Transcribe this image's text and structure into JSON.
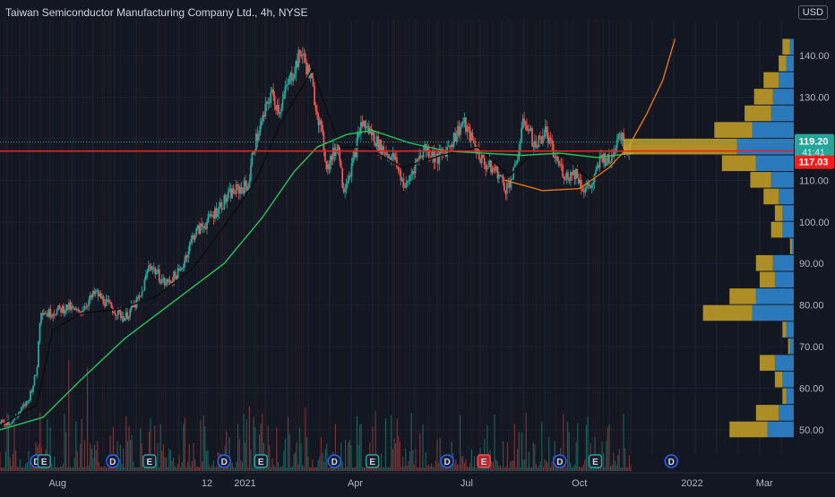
{
  "header": {
    "title": "Taiwan Semiconductor Manufacturing Company Ltd., 4h, NYSE",
    "currency": "USD"
  },
  "colors": {
    "background": "#131722",
    "up": "#26a69a",
    "down": "#ef5350",
    "ema_long": "#22c55e",
    "sma_short": "#0b0b0b",
    "cup_curve": "#f57c00",
    "price_line": "#ff1a1a",
    "volume_profile_buy": "#2e8bd6",
    "volume_profile_sell": "#c9a227"
  },
  "chart_data": {
    "type": "candlestick",
    "title": "Taiwan Semiconductor Manufacturing Company Ltd., 4h, NYSE",
    "ylim": [
      42,
      147
    ],
    "y_ticks": [
      50,
      60,
      70,
      80,
      90,
      100,
      110,
      120,
      130,
      140
    ],
    "y_tick_labels": [
      "50.00",
      "60.00",
      "70.00",
      "80.00",
      "90.00",
      "100.00",
      "110.00",
      "120.00",
      "130.00",
      "140.00"
    ],
    "x_range": [
      "2020-06-15",
      "2022-03-25"
    ],
    "x_ticks": [
      {
        "date": "2020-08-01",
        "label": "Aug"
      },
      {
        "date": "2020-12-01",
        "label": "12"
      },
      {
        "date": "2021-01-01",
        "label": "2021"
      },
      {
        "date": "2021-04-01",
        "label": "Apr"
      },
      {
        "date": "2021-07-01",
        "label": "Jul"
      },
      {
        "date": "2021-10-01",
        "label": "Oct"
      },
      {
        "date": "2022-01-01",
        "label": "2022"
      },
      {
        "date": "2022-03-01",
        "label": "Mar"
      }
    ],
    "price_path": [
      [
        "2020-06-15",
        51.5
      ],
      [
        "2020-06-25",
        52
      ],
      [
        "2020-07-08",
        57
      ],
      [
        "2020-07-15",
        64
      ],
      [
        "2020-07-18",
        79
      ],
      [
        "2020-07-24",
        78
      ],
      [
        "2020-08-10",
        79.5
      ],
      [
        "2020-08-18",
        78
      ],
      [
        "2020-09-01",
        83
      ],
      [
        "2020-09-15",
        79
      ],
      [
        "2020-09-25",
        77
      ],
      [
        "2020-10-08",
        82
      ],
      [
        "2020-10-15",
        90
      ],
      [
        "2020-10-28",
        85
      ],
      [
        "2020-11-09",
        88
      ],
      [
        "2020-11-20",
        97
      ],
      [
        "2020-12-01",
        100
      ],
      [
        "2020-12-12",
        104
      ],
      [
        "2020-12-21",
        107
      ],
      [
        "2021-01-04",
        109
      ],
      [
        "2021-01-08",
        118
      ],
      [
        "2021-01-15",
        124
      ],
      [
        "2021-01-22",
        131
      ],
      [
        "2021-01-29",
        127
      ],
      [
        "2021-02-05",
        133
      ],
      [
        "2021-02-16",
        141
      ],
      [
        "2021-02-24",
        134
      ],
      [
        "2021-03-04",
        122
      ],
      [
        "2021-03-09",
        113
      ],
      [
        "2021-03-18",
        119
      ],
      [
        "2021-03-22",
        108
      ],
      [
        "2021-03-30",
        114
      ],
      [
        "2021-04-06",
        124
      ],
      [
        "2021-04-15",
        121
      ],
      [
        "2021-04-21",
        118
      ],
      [
        "2021-05-03",
        115
      ],
      [
        "2021-05-12",
        108
      ],
      [
        "2021-05-20",
        114
      ],
      [
        "2021-05-28",
        118
      ],
      [
        "2021-06-07",
        115
      ],
      [
        "2021-06-16",
        118
      ],
      [
        "2021-06-28",
        124
      ],
      [
        "2021-07-08",
        118
      ],
      [
        "2021-07-15",
        114
      ],
      [
        "2021-07-26",
        112
      ],
      [
        "2021-08-02",
        108
      ],
      [
        "2021-08-09",
        112
      ],
      [
        "2021-08-17",
        125
      ],
      [
        "2021-08-26",
        118
      ],
      [
        "2021-09-03",
        122
      ],
      [
        "2021-09-10",
        116
      ],
      [
        "2021-09-20",
        111
      ],
      [
        "2021-09-28",
        112
      ],
      [
        "2021-10-04",
        108
      ],
      [
        "2021-10-12",
        109
      ],
      [
        "2021-10-19",
        116
      ],
      [
        "2021-10-26",
        114
      ],
      [
        "2021-11-02",
        122
      ],
      [
        "2021-11-09",
        117
      ],
      [
        "2021-11-12",
        119.2
      ]
    ],
    "sma_short": [
      [
        "2020-06-15",
        51
      ],
      [
        "2020-07-15",
        56
      ],
      [
        "2020-07-28",
        74
      ],
      [
        "2020-08-20",
        78
      ],
      [
        "2020-09-20",
        79
      ],
      [
        "2020-10-20",
        82
      ],
      [
        "2020-11-20",
        89
      ],
      [
        "2020-12-20",
        101
      ],
      [
        "2021-01-10",
        110
      ],
      [
        "2021-01-30",
        124
      ],
      [
        "2021-02-18",
        133
      ],
      [
        "2021-02-25",
        137
      ],
      [
        "2021-03-05",
        130
      ],
      [
        "2021-03-20",
        118
      ],
      [
        "2021-04-10",
        118
      ],
      [
        "2021-05-10",
        113
      ],
      [
        "2021-06-10",
        116
      ],
      [
        "2021-07-10",
        118
      ],
      [
        "2021-08-05",
        111
      ],
      [
        "2021-08-25",
        117
      ],
      [
        "2021-09-15",
        117
      ],
      [
        "2021-10-10",
        110
      ],
      [
        "2021-11-01",
        115
      ],
      [
        "2021-11-12",
        117
      ]
    ],
    "ema_long": [
      [
        "2020-06-15",
        50
      ],
      [
        "2020-07-20",
        53
      ],
      [
        "2020-08-20",
        62
      ],
      [
        "2020-09-25",
        72
      ],
      [
        "2020-10-31",
        80
      ],
      [
        "2020-12-15",
        90
      ],
      [
        "2021-01-15",
        101
      ],
      [
        "2021-02-10",
        112
      ],
      [
        "2021-03-01",
        118
      ],
      [
        "2021-03-25",
        121
      ],
      [
        "2021-04-15",
        122
      ],
      [
        "2021-05-15",
        119
      ],
      [
        "2021-06-15",
        117
      ],
      [
        "2021-07-15",
        116.5
      ],
      [
        "2021-08-15",
        116
      ],
      [
        "2021-09-15",
        116.5
      ],
      [
        "2021-10-15",
        115.5
      ],
      [
        "2021-11-14",
        116.5
      ]
    ],
    "cup_curve": [
      [
        "2021-08-01",
        110
      ],
      [
        "2021-09-01",
        107.5
      ],
      [
        "2021-10-01",
        108
      ],
      [
        "2021-10-25",
        113
      ],
      [
        "2021-11-10",
        118
      ],
      [
        "2021-11-25",
        126
      ],
      [
        "2021-12-08",
        134
      ],
      [
        "2021-12-18",
        144
      ]
    ],
    "current_price": {
      "value": 119.2,
      "label": "119.20",
      "countdown": "41:41"
    },
    "price_line": {
      "value": 117.03,
      "label": "117.03"
    },
    "volume_profile": [
      {
        "price": 142,
        "buy": 2,
        "sell": 4
      },
      {
        "price": 138,
        "buy": 4,
        "sell": 4
      },
      {
        "price": 134,
        "buy": 8,
        "sell": 8
      },
      {
        "price": 130,
        "buy": 11,
        "sell": 10
      },
      {
        "price": 126,
        "buy": 12,
        "sell": 14
      },
      {
        "price": 122,
        "buy": 22,
        "sell": 20
      },
      {
        "price": 118,
        "buy": 30,
        "sell": 60
      },
      {
        "price": 114,
        "buy": 20,
        "sell": 18
      },
      {
        "price": 110,
        "buy": 12,
        "sell": 11
      },
      {
        "price": 106,
        "buy": 8,
        "sell": 8
      },
      {
        "price": 102,
        "buy": 6,
        "sell": 4
      },
      {
        "price": 98,
        "buy": 6,
        "sell": 6
      },
      {
        "price": 94,
        "buy": 1,
        "sell": 1
      },
      {
        "price": 90,
        "buy": 11,
        "sell": 9
      },
      {
        "price": 86,
        "buy": 10,
        "sell": 8
      },
      {
        "price": 82,
        "buy": 20,
        "sell": 14
      },
      {
        "price": 78,
        "buy": 22,
        "sell": 26
      },
      {
        "price": 74,
        "buy": 4,
        "sell": 2
      },
      {
        "price": 70,
        "buy": 2,
        "sell": 1
      },
      {
        "price": 66,
        "buy": 10,
        "sell": 8
      },
      {
        "price": 62,
        "buy": 6,
        "sell": 4
      },
      {
        "price": 58,
        "buy": 4,
        "sell": 2
      },
      {
        "price": 54,
        "buy": 8,
        "sell": 12
      },
      {
        "price": 50,
        "buy": 14,
        "sell": 20
      }
    ],
    "markers": [
      {
        "date": "2020-07-15",
        "type": "D"
      },
      {
        "date": "2020-07-21",
        "type": "E"
      },
      {
        "date": "2020-09-15",
        "type": "D"
      },
      {
        "date": "2020-10-15",
        "type": "E"
      },
      {
        "date": "2020-12-15",
        "type": "D"
      },
      {
        "date": "2021-01-14",
        "type": "E"
      },
      {
        "date": "2021-03-15",
        "type": "D"
      },
      {
        "date": "2021-04-15",
        "type": "E"
      },
      {
        "date": "2021-06-15",
        "type": "D"
      },
      {
        "date": "2021-07-15",
        "type": "E",
        "negative": true
      },
      {
        "date": "2021-09-15",
        "type": "D"
      },
      {
        "date": "2021-10-14",
        "type": "E"
      },
      {
        "date": "2021-12-15",
        "type": "D"
      }
    ]
  }
}
